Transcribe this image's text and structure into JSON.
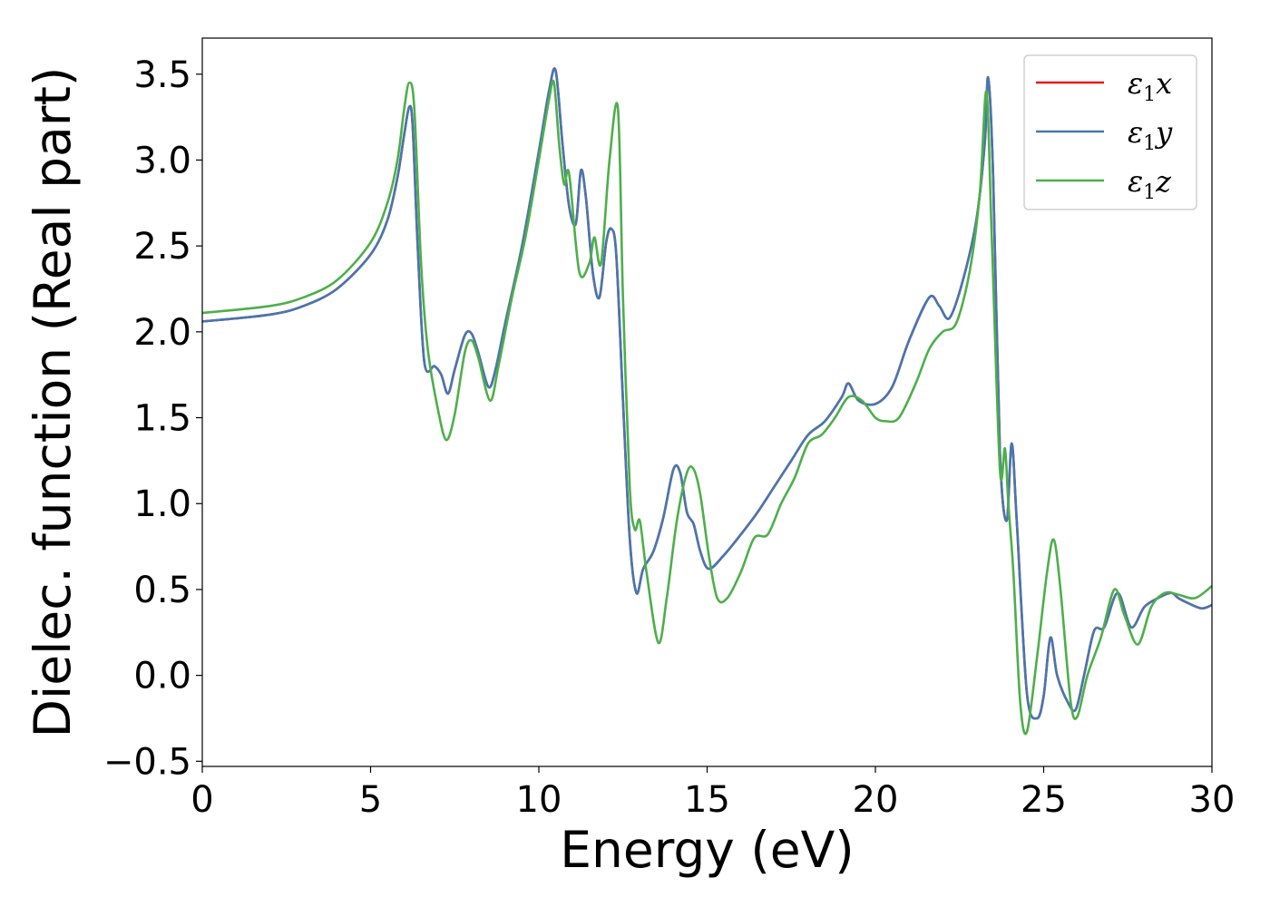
{
  "chart_data": {
    "type": "line",
    "xlabel": "Energy (eV)",
    "ylabel": "Dielec. function (Real part)",
    "xlim": [
      0,
      30
    ],
    "ylim": [
      -0.53,
      3.71
    ],
    "xticks": [
      0,
      5,
      10,
      15,
      20,
      25,
      30
    ],
    "yticks": [
      -0.5,
      0.0,
      0.5,
      1.0,
      1.5,
      2.0,
      2.5,
      3.0,
      3.5
    ],
    "xtick_labels": [
      "0",
      "5",
      "10",
      "15",
      "20",
      "25",
      "30"
    ],
    "ytick_labels": [
      "−0.5",
      "0.0",
      "0.5",
      "1.0",
      "1.5",
      "2.0",
      "2.5",
      "3.0",
      "3.5"
    ],
    "grid": false,
    "legend_position": "top-right",
    "series": [
      {
        "name": "ε",
        "sub": "1",
        "suffix": "x",
        "color": "#e41a1c",
        "x": [
          0,
          2,
          3,
          4,
          5,
          5.5,
          5.8,
          6.0,
          6.15,
          6.25,
          6.4,
          6.6,
          6.9,
          7.1,
          7.3,
          7.5,
          7.8,
          8.0,
          8.2,
          8.5,
          8.7,
          9.0,
          9.5,
          10.0,
          10.3,
          10.5,
          10.7,
          10.9,
          11.1,
          11.25,
          11.4,
          11.6,
          11.8,
          12.0,
          12.15,
          12.3,
          12.5,
          12.7,
          12.9,
          13.1,
          13.4,
          13.7,
          14.0,
          14.2,
          14.4,
          14.6,
          14.8,
          15.05,
          15.5,
          16.0,
          16.5,
          17.0,
          17.5,
          18.0,
          18.5,
          19.0,
          19.2,
          19.5,
          20.0,
          20.5,
          21.0,
          21.6,
          21.9,
          22.2,
          22.6,
          23.0,
          23.25,
          23.35,
          23.5,
          23.7,
          23.9,
          24.05,
          24.2,
          24.5,
          24.8,
          25.0,
          25.2,
          25.4,
          25.7,
          25.95,
          26.2,
          26.5,
          26.8,
          27.2,
          27.6,
          28.0,
          28.5,
          28.8,
          29.0,
          29.3,
          29.7,
          30.0
        ],
        "y": [
          2.06,
          2.1,
          2.15,
          2.25,
          2.45,
          2.65,
          2.9,
          3.15,
          3.31,
          3.2,
          2.5,
          1.82,
          1.8,
          1.75,
          1.64,
          1.78,
          1.98,
          1.99,
          1.88,
          1.68,
          1.77,
          2.05,
          2.5,
          3.05,
          3.4,
          3.52,
          3.1,
          2.73,
          2.63,
          2.94,
          2.78,
          2.35,
          2.2,
          2.52,
          2.6,
          2.45,
          1.6,
          0.8,
          0.48,
          0.62,
          0.72,
          0.92,
          1.2,
          1.18,
          0.95,
          0.88,
          0.72,
          0.62,
          0.7,
          0.82,
          0.95,
          1.1,
          1.25,
          1.4,
          1.48,
          1.62,
          1.7,
          1.6,
          1.58,
          1.68,
          1.95,
          2.2,
          2.15,
          2.08,
          2.3,
          2.65,
          3.1,
          3.48,
          2.9,
          1.3,
          0.9,
          1.35,
          0.9,
          -0.1,
          -0.25,
          -0.12,
          0.22,
          0.0,
          -0.15,
          -0.2,
          0.0,
          0.26,
          0.28,
          0.48,
          0.28,
          0.4,
          0.46,
          0.48,
          0.45,
          0.42,
          0.39,
          0.41
        ]
      },
      {
        "name": "ε",
        "sub": "1",
        "suffix": "y",
        "color": "#4677b0",
        "x": [
          0,
          2,
          3,
          4,
          5,
          5.5,
          5.8,
          6.0,
          6.15,
          6.25,
          6.4,
          6.6,
          6.9,
          7.1,
          7.3,
          7.5,
          7.8,
          8.0,
          8.2,
          8.5,
          8.7,
          9.0,
          9.5,
          10.0,
          10.3,
          10.5,
          10.7,
          10.9,
          11.1,
          11.25,
          11.4,
          11.6,
          11.8,
          12.0,
          12.15,
          12.3,
          12.5,
          12.7,
          12.9,
          13.1,
          13.4,
          13.7,
          14.0,
          14.2,
          14.4,
          14.6,
          14.8,
          15.05,
          15.5,
          16.0,
          16.5,
          17.0,
          17.5,
          18.0,
          18.5,
          19.0,
          19.2,
          19.5,
          20.0,
          20.5,
          21.0,
          21.6,
          21.9,
          22.2,
          22.6,
          23.0,
          23.25,
          23.35,
          23.5,
          23.7,
          23.9,
          24.05,
          24.2,
          24.5,
          24.8,
          25.0,
          25.2,
          25.4,
          25.7,
          25.95,
          26.2,
          26.5,
          26.8,
          27.2,
          27.6,
          28.0,
          28.5,
          28.8,
          29.0,
          29.3,
          29.7,
          30.0
        ],
        "y": [
          2.06,
          2.1,
          2.15,
          2.25,
          2.45,
          2.65,
          2.9,
          3.15,
          3.31,
          3.2,
          2.5,
          1.82,
          1.8,
          1.75,
          1.64,
          1.78,
          1.98,
          1.99,
          1.88,
          1.68,
          1.77,
          2.05,
          2.5,
          3.05,
          3.4,
          3.52,
          3.1,
          2.73,
          2.63,
          2.94,
          2.78,
          2.35,
          2.2,
          2.52,
          2.6,
          2.45,
          1.6,
          0.8,
          0.48,
          0.62,
          0.72,
          0.92,
          1.2,
          1.18,
          0.95,
          0.88,
          0.72,
          0.62,
          0.7,
          0.82,
          0.95,
          1.1,
          1.25,
          1.4,
          1.48,
          1.62,
          1.7,
          1.6,
          1.58,
          1.68,
          1.95,
          2.2,
          2.15,
          2.08,
          2.3,
          2.65,
          3.1,
          3.48,
          2.9,
          1.3,
          0.9,
          1.35,
          0.9,
          -0.1,
          -0.25,
          -0.12,
          0.22,
          0.0,
          -0.15,
          -0.2,
          0.0,
          0.26,
          0.28,
          0.48,
          0.28,
          0.4,
          0.46,
          0.48,
          0.45,
          0.42,
          0.39,
          0.41
        ]
      },
      {
        "name": "ε",
        "sub": "1",
        "suffix": "z",
        "color": "#4daf4a",
        "x": [
          0,
          2,
          3,
          4,
          5,
          5.5,
          5.8,
          6.0,
          6.15,
          6.3,
          6.5,
          6.7,
          7.0,
          7.25,
          7.5,
          7.8,
          8.0,
          8.2,
          8.55,
          8.8,
          9.2,
          9.6,
          10.0,
          10.3,
          10.45,
          10.6,
          10.75,
          10.9,
          11.2,
          11.5,
          11.65,
          11.85,
          12.1,
          12.35,
          12.5,
          12.7,
          12.85,
          13.0,
          13.2,
          13.55,
          13.8,
          14.1,
          14.4,
          14.6,
          14.8,
          15.05,
          15.3,
          15.6,
          16.0,
          16.4,
          16.8,
          17.2,
          17.6,
          18.0,
          18.4,
          18.8,
          19.2,
          19.6,
          20.0,
          20.3,
          20.7,
          21.2,
          21.6,
          22.0,
          22.4,
          22.8,
          23.1,
          23.3,
          23.45,
          23.7,
          23.85,
          23.95,
          24.1,
          24.3,
          24.5,
          24.8,
          25.1,
          25.3,
          25.5,
          25.8,
          26.0,
          26.3,
          26.7,
          27.1,
          27.4,
          27.8,
          28.2,
          28.6,
          29.0,
          29.5,
          30.0
        ],
        "y": [
          2.11,
          2.15,
          2.2,
          2.3,
          2.52,
          2.75,
          3.0,
          3.3,
          3.45,
          3.3,
          2.4,
          1.9,
          1.55,
          1.37,
          1.52,
          1.88,
          1.95,
          1.85,
          1.6,
          1.8,
          2.2,
          2.55,
          3.0,
          3.35,
          3.45,
          3.1,
          2.86,
          2.92,
          2.35,
          2.4,
          2.55,
          2.4,
          3.0,
          3.3,
          2.2,
          1.1,
          0.85,
          0.9,
          0.6,
          0.19,
          0.45,
          0.9,
          1.18,
          1.2,
          1.05,
          0.7,
          0.45,
          0.45,
          0.6,
          0.8,
          0.82,
          1.0,
          1.15,
          1.35,
          1.4,
          1.5,
          1.62,
          1.6,
          1.5,
          1.48,
          1.5,
          1.7,
          1.9,
          2.0,
          2.05,
          2.35,
          2.8,
          3.4,
          2.6,
          1.2,
          1.32,
          1.0,
          0.6,
          -0.15,
          -0.33,
          0.1,
          0.6,
          0.79,
          0.5,
          -0.15,
          -0.24,
          0.0,
          0.22,
          0.5,
          0.35,
          0.18,
          0.4,
          0.48,
          0.47,
          0.45,
          0.52
        ]
      }
    ]
  }
}
